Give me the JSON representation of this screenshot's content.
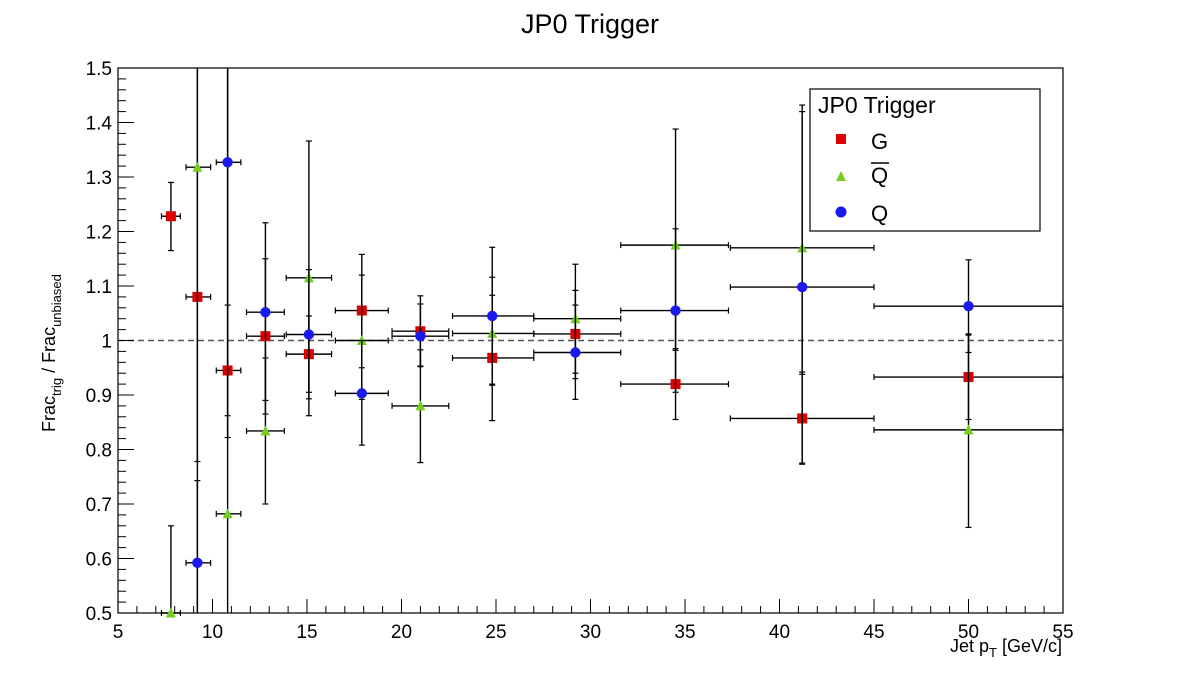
{
  "chart_data": {
    "type": "scatter",
    "title": "JP0 Trigger",
    "xlabel": {
      "main": "Jet p",
      "sub": "T",
      "unit": " [GeV/c]"
    },
    "ylabel": {
      "a": "Frac",
      "a_sub": "trig",
      "sep": " / Frac",
      "b_sub": "unbiased"
    },
    "xlim": [
      5,
      55
    ],
    "ylim": [
      0.5,
      1.5
    ],
    "x_ticks": [
      5,
      10,
      15,
      20,
      25,
      30,
      35,
      40,
      45,
      50,
      55
    ],
    "y_ticks": [
      0.5,
      0.6,
      0.7,
      0.8,
      0.9,
      1,
      1.1,
      1.2,
      1.3,
      1.4,
      1.5
    ],
    "x_tick_labels": [
      "5",
      "10",
      "15",
      "20",
      "25",
      "30",
      "35",
      "40",
      "45",
      "50",
      "55"
    ],
    "y_tick_labels": [
      "0.5",
      "0.6",
      "0.7",
      "0.8",
      "0.9",
      "1",
      "1.1",
      "1.2",
      "1.3",
      "1.4",
      "1.5"
    ],
    "reference_line": 1.0,
    "legend": {
      "title": "JP0 Trigger",
      "position": "top-right"
    },
    "series": [
      {
        "name": "G",
        "marker": "square",
        "color": "#dd0000",
        "points": [
          {
            "x": 7.8,
            "y": 1.228,
            "xlo": 7.3,
            "xhi": 8.3,
            "ylo": 1.165,
            "yhi": 1.29
          },
          {
            "x": 9.2,
            "y": 1.08,
            "xlo": 8.6,
            "xhi": 9.9,
            "ylo": 0.778,
            "yhi": 1.5
          },
          {
            "x": 10.8,
            "y": 0.945,
            "xlo": 10.2,
            "xhi": 11.5,
            "ylo": 0.822,
            "yhi": 1.065
          },
          {
            "x": 12.8,
            "y": 1.008,
            "xlo": 11.8,
            "xhi": 13.8,
            "ylo": 0.865,
            "yhi": 1.15
          },
          {
            "x": 15.1,
            "y": 0.975,
            "xlo": 13.9,
            "xhi": 16.3,
            "ylo": 0.905,
            "yhi": 1.045
          },
          {
            "x": 17.9,
            "y": 1.055,
            "xlo": 16.5,
            "xhi": 19.3,
            "ylo": 0.95,
            "yhi": 1.158
          },
          {
            "x": 21.0,
            "y": 1.017,
            "xlo": 19.5,
            "xhi": 22.5,
            "ylo": 0.953,
            "yhi": 1.082
          },
          {
            "x": 24.8,
            "y": 0.968,
            "xlo": 22.7,
            "xhi": 27.0,
            "ylo": 0.853,
            "yhi": 1.083
          },
          {
            "x": 29.2,
            "y": 1.012,
            "xlo": 27.0,
            "xhi": 31.6,
            "ylo": 0.93,
            "yhi": 1.092
          },
          {
            "x": 34.5,
            "y": 0.92,
            "xlo": 31.6,
            "xhi": 37.3,
            "ylo": 0.855,
            "yhi": 0.985
          },
          {
            "x": 41.2,
            "y": 0.857,
            "xlo": 37.4,
            "xhi": 45.0,
            "ylo": 0.773,
            "yhi": 0.942
          },
          {
            "x": 50.0,
            "y": 0.933,
            "xlo": 45.0,
            "xhi": 55.0,
            "ylo": 0.855,
            "yhi": 1.012
          }
        ]
      },
      {
        "name": "Q",
        "overline": true,
        "marker": "triangle",
        "color": "#77cc22",
        "points": [
          {
            "x": 7.8,
            "y": 0.5,
            "xlo": 7.3,
            "xhi": 8.3,
            "ylo": 0.5,
            "yhi": 0.66
          },
          {
            "x": 9.2,
            "y": 1.318,
            "xlo": 8.6,
            "xhi": 9.9,
            "ylo": 0.5,
            "yhi": 1.5
          },
          {
            "x": 10.8,
            "y": 0.682,
            "xlo": 10.2,
            "xhi": 11.5,
            "ylo": 0.5,
            "yhi": 1.5
          },
          {
            "x": 12.8,
            "y": 0.834,
            "xlo": 11.8,
            "xhi": 13.8,
            "ylo": 0.7,
            "yhi": 0.968
          },
          {
            "x": 15.1,
            "y": 1.115,
            "xlo": 13.9,
            "xhi": 16.3,
            "ylo": 0.862,
            "yhi": 1.366
          },
          {
            "x": 17.9,
            "y": 1.0,
            "xlo": 16.5,
            "xhi": 19.3,
            "ylo": 0.892,
            "yhi": 1.12
          },
          {
            "x": 21.0,
            "y": 0.88,
            "xlo": 19.5,
            "xhi": 22.5,
            "ylo": 0.776,
            "yhi": 0.983
          },
          {
            "x": 24.8,
            "y": 1.013,
            "xlo": 22.7,
            "xhi": 27.0,
            "ylo": 0.92,
            "yhi": 1.116
          },
          {
            "x": 29.2,
            "y": 1.04,
            "xlo": 27.0,
            "xhi": 31.6,
            "ylo": 0.94,
            "yhi": 1.14
          },
          {
            "x": 34.5,
            "y": 1.175,
            "xlo": 31.6,
            "xhi": 37.3,
            "ylo": 0.982,
            "yhi": 1.388
          },
          {
            "x": 41.2,
            "y": 1.17,
            "xlo": 37.4,
            "xhi": 45.0,
            "ylo": 0.938,
            "yhi": 1.432
          },
          {
            "x": 50.0,
            "y": 0.836,
            "xlo": 45.0,
            "xhi": 55.0,
            "ylo": 0.657,
            "yhi": 1.01
          }
        ]
      },
      {
        "name": "Q",
        "marker": "circle",
        "color": "#1a1aee",
        "points": [
          {
            "x": 9.2,
            "y": 0.592,
            "xlo": 8.6,
            "xhi": 9.9,
            "ylo": 0.5,
            "yhi": 0.743
          },
          {
            "x": 10.8,
            "y": 1.327,
            "xlo": 10.2,
            "xhi": 11.5,
            "ylo": 0.862,
            "yhi": 1.5
          },
          {
            "x": 12.8,
            "y": 1.052,
            "xlo": 11.8,
            "xhi": 13.8,
            "ylo": 0.89,
            "yhi": 1.216
          },
          {
            "x": 15.1,
            "y": 1.011,
            "xlo": 13.9,
            "xhi": 16.3,
            "ylo": 0.893,
            "yhi": 1.13
          },
          {
            "x": 17.9,
            "y": 0.903,
            "xlo": 16.5,
            "xhi": 19.3,
            "ylo": 0.808,
            "yhi": 1.0
          },
          {
            "x": 21.0,
            "y": 1.008,
            "xlo": 19.5,
            "xhi": 22.5,
            "ylo": 0.952,
            "yhi": 1.067
          },
          {
            "x": 24.8,
            "y": 1.045,
            "xlo": 22.7,
            "xhi": 27.0,
            "ylo": 0.918,
            "yhi": 1.171
          },
          {
            "x": 29.2,
            "y": 0.978,
            "xlo": 27.0,
            "xhi": 31.6,
            "ylo": 0.892,
            "yhi": 1.065
          },
          {
            "x": 34.5,
            "y": 1.055,
            "xlo": 31.6,
            "xhi": 37.3,
            "ylo": 0.905,
            "yhi": 1.205
          },
          {
            "x": 41.2,
            "y": 1.098,
            "xlo": 37.4,
            "xhi": 45.0,
            "ylo": 0.775,
            "yhi": 1.42
          },
          {
            "x": 50.0,
            "y": 1.063,
            "xlo": 45.0,
            "xhi": 55.0,
            "ylo": 0.978,
            "yhi": 1.148
          }
        ]
      }
    ]
  }
}
